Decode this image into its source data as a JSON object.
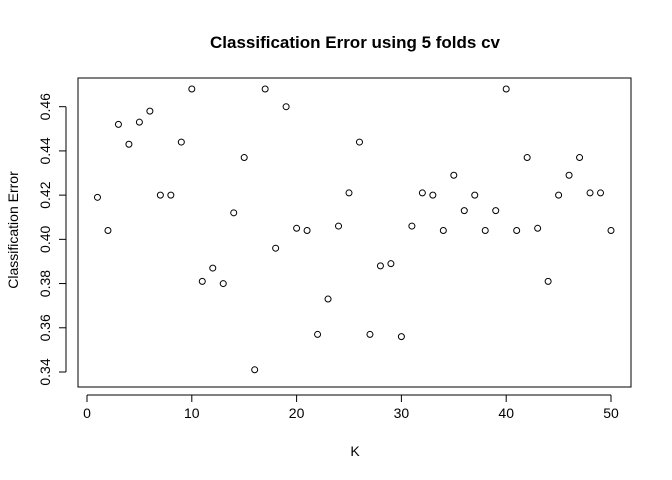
{
  "chart_data": {
    "type": "scatter",
    "title": "Classification Error using 5 folds cv",
    "xlabel": "K",
    "ylabel": "Classification Error",
    "xlim": [
      0,
      50
    ],
    "ylim": [
      0.34,
      0.468
    ],
    "xticks": [
      0,
      10,
      20,
      30,
      40,
      50
    ],
    "yticks": [
      0.34,
      0.36,
      0.38,
      0.4,
      0.42,
      0.44,
      0.46
    ],
    "xtick_labels": [
      "0",
      "10",
      "20",
      "30",
      "40",
      "50"
    ],
    "ytick_labels": [
      "0.34",
      "0.36",
      "0.38",
      "0.40",
      "0.42",
      "0.44",
      "0.46"
    ],
    "grid": false,
    "series": [
      {
        "x": [
          1,
          2,
          3,
          4,
          5,
          6,
          7,
          8,
          9,
          10,
          11,
          12,
          13,
          14,
          15,
          16,
          17,
          18,
          19,
          20,
          21,
          22,
          23,
          24,
          25,
          26,
          27,
          28,
          29,
          30,
          31,
          32,
          33,
          34,
          35,
          36,
          37,
          38,
          39,
          40,
          41,
          42,
          43,
          44,
          45,
          46,
          47,
          48,
          49,
          50
        ],
        "values": [
          0.419,
          0.404,
          0.452,
          0.443,
          0.453,
          0.458,
          0.42,
          0.42,
          0.444,
          0.468,
          0.381,
          0.387,
          0.38,
          0.412,
          0.437,
          0.341,
          0.468,
          0.396,
          0.46,
          0.405,
          0.404,
          0.357,
          0.373,
          0.406,
          0.421,
          0.444,
          0.357,
          0.388,
          0.389,
          0.356,
          0.406,
          0.421,
          0.42,
          0.404,
          0.429,
          0.413,
          0.42,
          0.404,
          0.413,
          0.468,
          0.404,
          0.437,
          0.405,
          0.381,
          0.42,
          0.429,
          0.437,
          0.421,
          0.421,
          0.404
        ]
      }
    ]
  }
}
